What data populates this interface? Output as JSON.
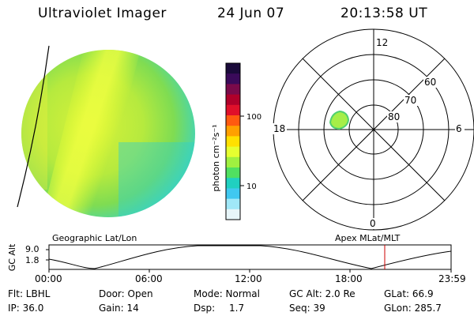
{
  "header": {
    "instrument": "Ultraviolet Imager",
    "date": "24 Jun 07",
    "time": "20:13:58 UT"
  },
  "colorbar": {
    "unit_label": "photon cm⁻²s⁻¹",
    "ticks": [
      "100",
      "10"
    ],
    "colors": [
      "#1a0a3a",
      "#3a0a5a",
      "#7a0a4a",
      "#b0002a",
      "#e0102a",
      "#ff5a10",
      "#ffa000",
      "#ffe000",
      "#e6ff30",
      "#a0f040",
      "#50e060",
      "#20d0c0",
      "#40c8f0",
      "#a0e8f8",
      "#e8f6fa"
    ]
  },
  "polar_plot": {
    "mlt_labels": {
      "top": "12",
      "left": "18",
      "right": "6",
      "bottom": "0"
    },
    "lat_labels": [
      "60",
      "70",
      "80"
    ]
  },
  "timeline": {
    "left_label": "Geographic Lat/Lon",
    "right_label": "Apex MLat/MLT",
    "y_axis_label": "GC Alt",
    "y_ticks": [
      "9.0",
      "1.8"
    ],
    "x_ticks": [
      "00:00",
      "06:00",
      "12:00",
      "18:00",
      "23:59"
    ],
    "marker_color": "#cc0000"
  },
  "status": {
    "flt": "Flt: LBHL",
    "door": "Door: Open",
    "mode": "Mode: Normal",
    "gc_alt": "GC Alt: 2.0 Re",
    "glat": "GLat:  66.9",
    "ip": "IP: 36.0",
    "gain": "Gain: 14",
    "dsp_label": "Dsp:",
    "dsp_value": "1.7",
    "seq": "Seq: 39",
    "glon": "GLon: 285.7"
  }
}
